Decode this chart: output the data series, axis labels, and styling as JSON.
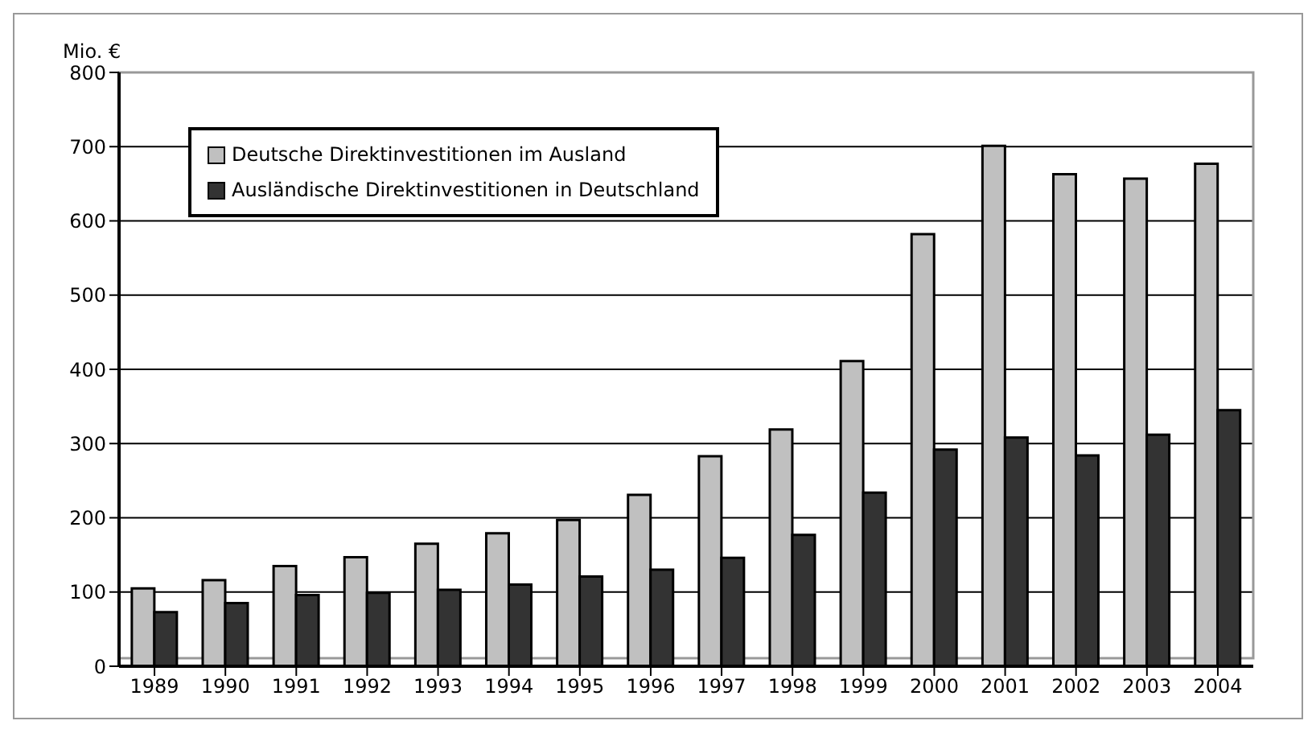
{
  "chart_data": {
    "type": "bar",
    "ylabel": "Mio. €",
    "categories": [
      "1989",
      "1990",
      "1991",
      "1992",
      "1993",
      "1994",
      "1995",
      "1996",
      "1997",
      "1998",
      "1999",
      "2000",
      "2001",
      "2002",
      "2003",
      "2004"
    ],
    "series": [
      {
        "name": "Deutsche Direktinvestitionen im Ausland",
        "color": "#c0c0c0",
        "values": [
          105,
          116,
          135,
          147,
          165,
          179,
          197,
          231,
          283,
          319,
          411,
          582,
          701,
          663,
          657,
          677
        ]
      },
      {
        "name": "Ausländische Direktinvestitionen in Deutschland",
        "color": "#333333",
        "values": [
          73,
          85,
          96,
          99,
          103,
          110,
          121,
          130,
          146,
          177,
          234,
          292,
          308,
          284,
          312,
          345
        ]
      }
    ],
    "ylim": [
      0,
      800
    ],
    "yticks": [
      0,
      100,
      200,
      300,
      400,
      500,
      600,
      700,
      800
    ],
    "grid": "y",
    "legend": "top left"
  }
}
